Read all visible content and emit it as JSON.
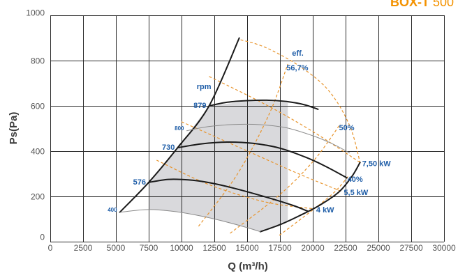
{
  "chart_data": {
    "type": "line",
    "title": "BOX-T 500",
    "xlabel": "Q (m³/h)",
    "ylabel": "Ps(Pa)",
    "xlim": [
      0,
      30000
    ],
    "ylim": [
      0,
      1000
    ],
    "xticks": [
      0,
      2500,
      5000,
      7500,
      10000,
      12500,
      15000,
      17500,
      20000,
      22500,
      25000,
      27500,
      30000
    ],
    "yticks": [
      0,
      200,
      400,
      600,
      800,
      1000
    ],
    "grid": true,
    "speed_unit": "rpm",
    "speed_curves": [
      {
        "name": "879",
        "color": "#1a1a1a",
        "points": [
          [
            12100,
            600
          ],
          [
            13500,
            616
          ],
          [
            15000,
            623
          ],
          [
            16500,
            625
          ],
          [
            18000,
            619
          ],
          [
            19300,
            606
          ],
          [
            20400,
            585
          ]
        ]
      },
      {
        "name": "800",
        "color": "#8c8c8c",
        "points": [
          [
            10400,
            490
          ],
          [
            12000,
            508
          ],
          [
            14000,
            518
          ],
          [
            16000,
            517
          ],
          [
            18000,
            503
          ],
          [
            20000,
            468
          ],
          [
            21500,
            432
          ],
          [
            22800,
            392
          ]
        ]
      },
      {
        "name": "730",
        "color": "#1a1a1a",
        "points": [
          [
            9700,
            415
          ],
          [
            11500,
            432
          ],
          [
            13500,
            440
          ],
          [
            15500,
            434
          ],
          [
            17500,
            413
          ],
          [
            19500,
            372
          ],
          [
            21000,
            332
          ],
          [
            22600,
            282
          ]
        ]
      },
      {
        "name": "576",
        "color": "#1a1a1a",
        "points": [
          [
            7500,
            262
          ],
          [
            9000,
            275
          ],
          [
            10500,
            273
          ],
          [
            12000,
            262
          ],
          [
            14000,
            236
          ],
          [
            16500,
            196
          ],
          [
            18500,
            160
          ],
          [
            19600,
            135
          ]
        ]
      },
      {
        "name": "400",
        "color": "#8c8c8c",
        "points": [
          [
            5300,
            130
          ],
          [
            7500,
            142
          ],
          [
            9500,
            133
          ],
          [
            11500,
            113
          ],
          [
            13500,
            86
          ],
          [
            15000,
            62
          ],
          [
            16000,
            44
          ]
        ]
      }
    ],
    "boundaries": [
      {
        "points": [
          [
            5300,
            130
          ],
          [
            7500,
            262
          ],
          [
            9700,
            415
          ],
          [
            12100,
            600
          ],
          [
            14400,
            900
          ]
        ]
      },
      {
        "points": [
          [
            16000,
            44
          ],
          [
            17500,
            75
          ],
          [
            19000,
            115
          ],
          [
            20500,
            160
          ],
          [
            22000,
            220
          ],
          [
            23000,
            290
          ],
          [
            23600,
            350
          ]
        ]
      }
    ],
    "operating_area": [
      [
        7500,
        142
      ],
      [
        10000,
        130
      ],
      [
        12600,
        98
      ],
      [
        16100,
        43
      ],
      [
        18100,
        92
      ],
      [
        18100,
        613
      ],
      [
        15800,
        625
      ],
      [
        12100,
        600
      ],
      [
        9700,
        415
      ],
      [
        7500,
        262
      ]
    ],
    "efficiency_label": "eff.",
    "efficiency_envelope": [
      [
        14500,
        892
      ],
      [
        16400,
        858
      ],
      [
        19000,
        775
      ],
      [
        21200,
        668
      ],
      [
        22800,
        514
      ],
      [
        23600,
        350
      ]
    ],
    "efficiency_lines": [
      {
        "name": "56,7%",
        "points": [
          [
            11300,
            68
          ],
          [
            14250,
            298
          ],
          [
            16650,
            560
          ],
          [
            18100,
            785
          ]
        ]
      },
      {
        "name": "50%",
        "points": [
          [
            13700,
            37
          ],
          [
            17450,
            206
          ],
          [
            20100,
            360
          ],
          [
            22100,
            520
          ]
        ]
      },
      {
        "name": "40%",
        "points": [
          [
            17450,
            28
          ],
          [
            20100,
            145
          ],
          [
            21700,
            222
          ],
          [
            22750,
            292
          ]
        ]
      }
    ],
    "power_lines": [
      {
        "name": "7,50 kW",
        "points": [
          [
            12100,
            730
          ],
          [
            16400,
            606
          ],
          [
            20100,
            483
          ],
          [
            23600,
            350
          ]
        ]
      },
      {
        "name": "5,5 kW",
        "points": [
          [
            10000,
            530
          ],
          [
            14800,
            406
          ],
          [
            19000,
            298
          ],
          [
            22200,
            222
          ]
        ]
      },
      {
        "name": "4 kW",
        "points": [
          [
            8100,
            360
          ],
          [
            12100,
            252
          ],
          [
            16400,
            175
          ],
          [
            20100,
            145
          ]
        ]
      }
    ]
  },
  "colors": {
    "title": "#f39200",
    "label": "#1f5ea8",
    "dashed": "#e8942c",
    "curve": "#1a1a1a",
    "thin_curve": "#8c8c8c",
    "area": "#d9d9dc",
    "grid": "#2b2b2b",
    "tick_text": "#555555",
    "axis_title": "#3c3c3c"
  }
}
